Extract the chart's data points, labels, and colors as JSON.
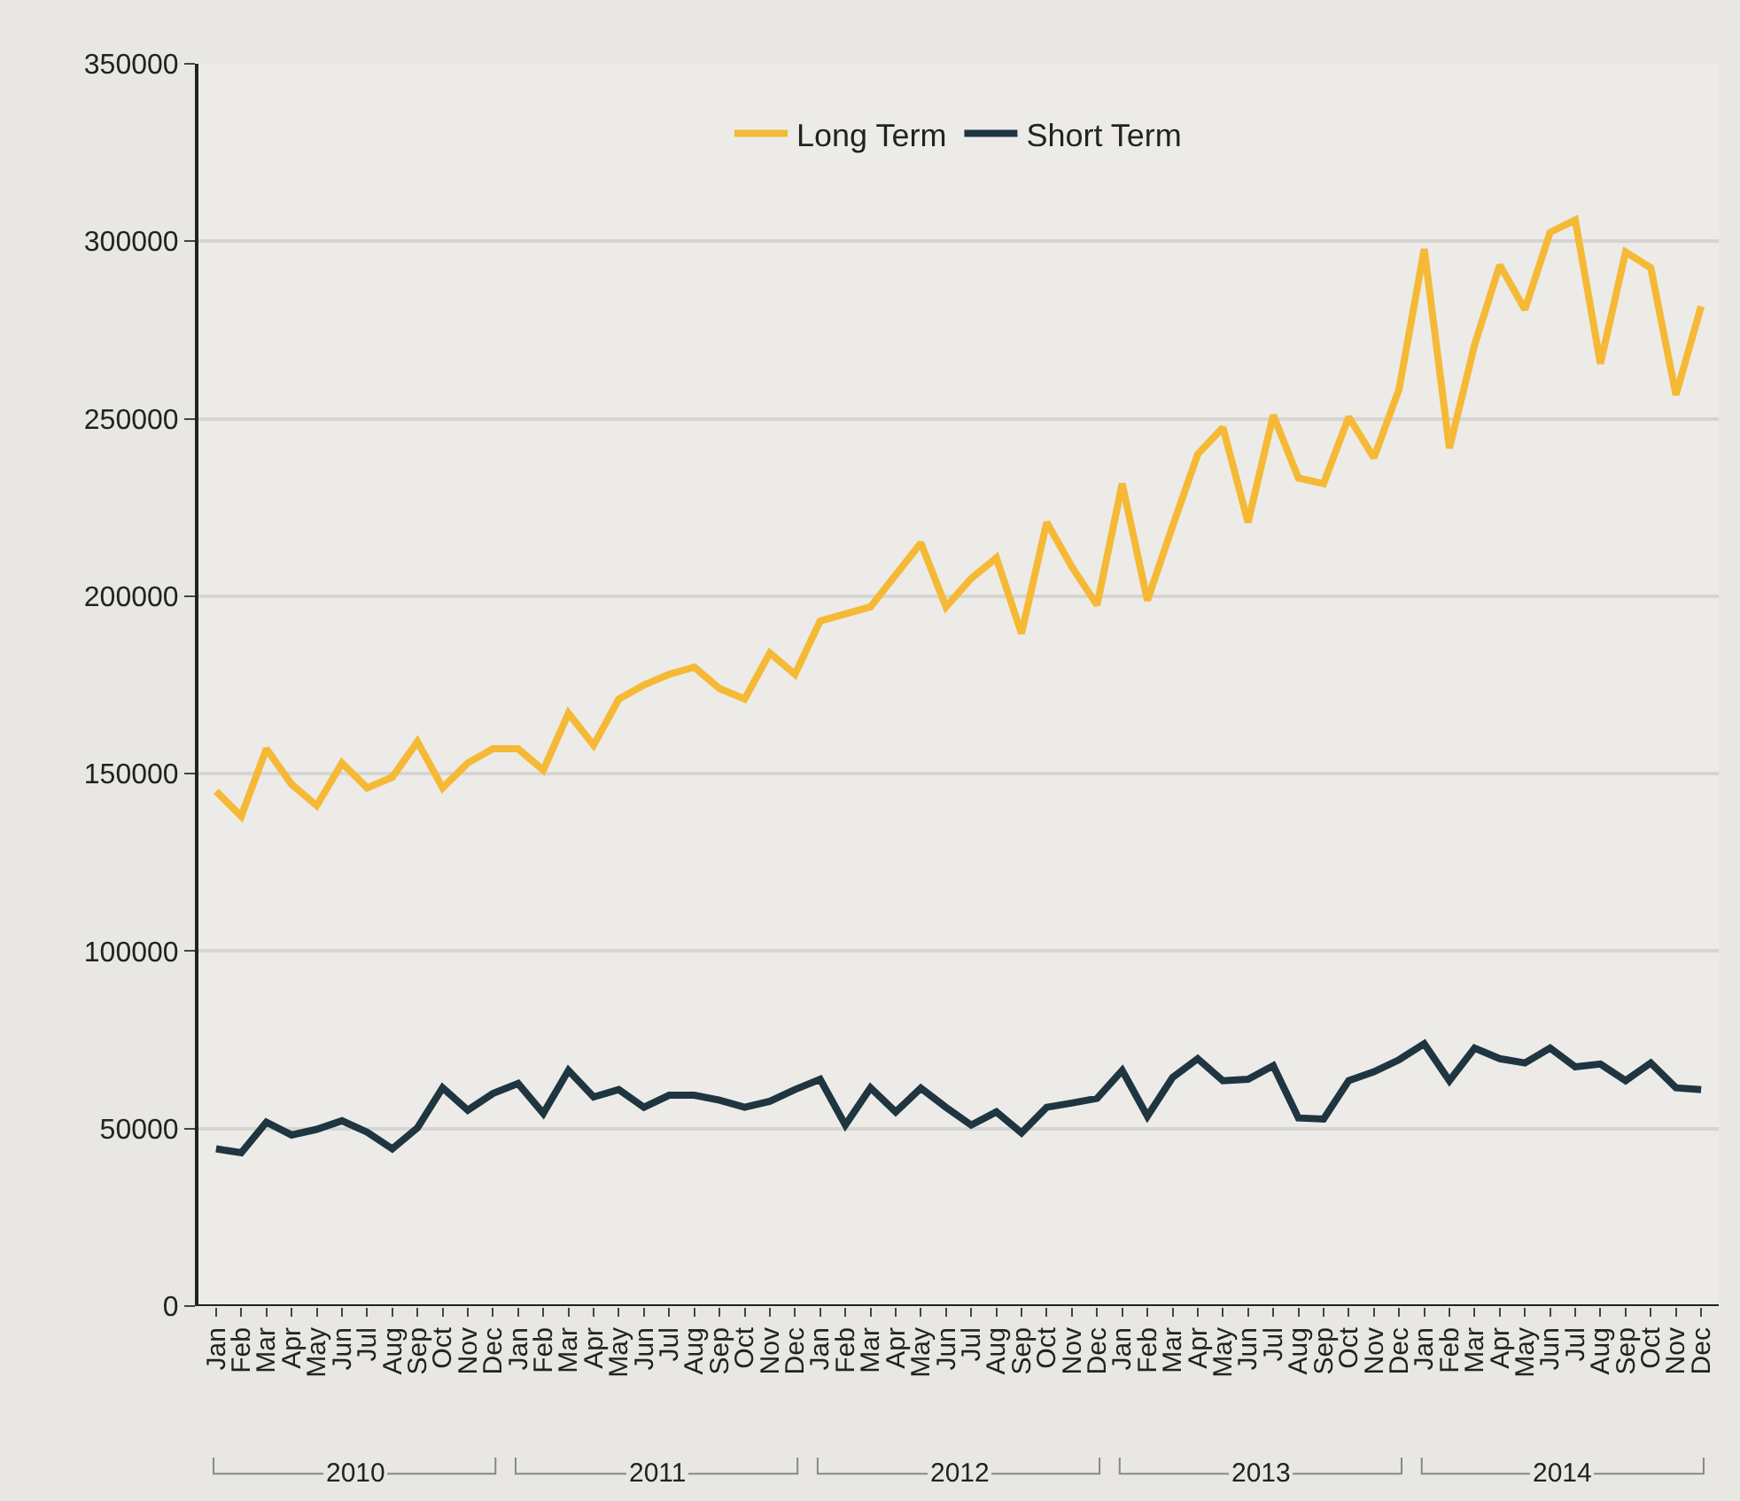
{
  "chart_data": {
    "type": "line",
    "categories": [
      "Jan",
      "Feb",
      "Mar",
      "Apr",
      "May",
      "Jun",
      "Jul",
      "Aug",
      "Sep",
      "Oct",
      "Nov",
      "Dec",
      "Jan",
      "Feb",
      "Mar",
      "Apr",
      "May",
      "Jun",
      "Jul",
      "Aug",
      "Sep",
      "Oct",
      "Nov",
      "Dec",
      "Jan",
      "Feb",
      "Mar",
      "Apr",
      "May",
      "Jun",
      "Jul",
      "Aug",
      "Sep",
      "Oct",
      "Nov",
      "Dec",
      "Jan",
      "Feb",
      "Mar",
      "Apr",
      "May",
      "Jun",
      "Jul",
      "Aug",
      "Sep",
      "Oct",
      "Nov",
      "Dec",
      "Jan",
      "Feb",
      "Mar",
      "Apr",
      "May",
      "Jun",
      "Jul",
      "Aug",
      "Sep",
      "Oct",
      "Nov",
      "Dec"
    ],
    "series": [
      {
        "name": "Long Term",
        "color": "#f5b935",
        "values": [
          145000,
          138000,
          157000,
          147000,
          141000,
          153000,
          146000,
          149000,
          159000,
          146000,
          153000,
          157000,
          157000,
          151000,
          167000,
          158000,
          171000,
          175000,
          178000,
          180000,
          174000,
          171000,
          184000,
          178000,
          193000,
          195000,
          197000,
          206000,
          215000,
          197000,
          205000,
          210800,
          189500,
          220800,
          208300,
          197500,
          231700,
          198800,
          219700,
          240000,
          247500,
          220800,
          251000,
          233300,
          231700,
          250500,
          239000,
          258300,
          297800,
          241700,
          270800,
          293300,
          280800,
          302500,
          306000,
          265500,
          297000,
          292500,
          256700,
          281700
        ]
      },
      {
        "name": "Short Term",
        "color": "#1f3540",
        "values": [
          44300,
          43200,
          51800,
          48200,
          49800,
          52200,
          49000,
          44300,
          50200,
          61500,
          55200,
          59900,
          62700,
          54300,
          66400,
          58900,
          61000,
          56000,
          59400,
          59400,
          58000,
          56000,
          57700,
          61000,
          63900,
          51000,
          61500,
          54700,
          61400,
          56000,
          51000,
          54700,
          48800,
          56000,
          57200,
          58500,
          66400,
          53500,
          64400,
          69700,
          63500,
          63900,
          67700,
          53000,
          52700,
          63500,
          66000,
          69400,
          73900,
          63500,
          72700,
          69700,
          68500,
          72700,
          67400,
          68200,
          63500,
          68500,
          61500,
          61000
        ]
      }
    ],
    "annotations": [
      "2010",
      "2011",
      "2012",
      "2013",
      "2014"
    ],
    "ylim": [
      0,
      350000
    ],
    "yticks": [
      0,
      50000,
      100000,
      150000,
      200000,
      250000,
      300000,
      350000
    ],
    "grid": "y",
    "legend": "top",
    "marker": "none",
    "line_style": "solid"
  }
}
